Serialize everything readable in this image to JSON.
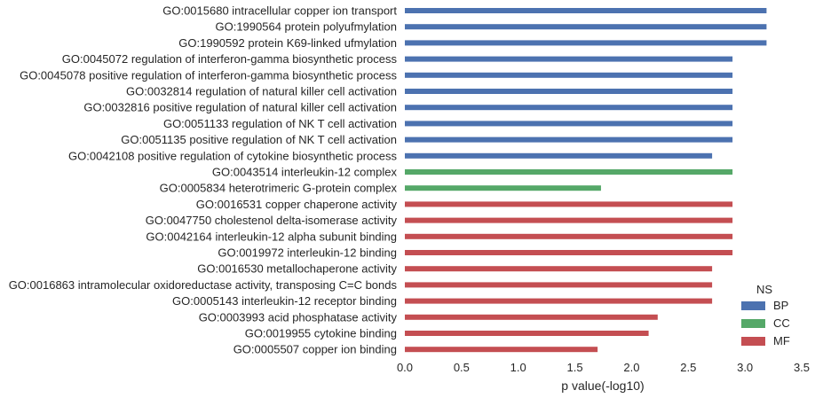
{
  "chart_data": {
    "type": "bar",
    "orientation": "horizontal",
    "title": "",
    "xlabel": "p value(-log10)",
    "ylabel": "",
    "xlim": [
      0,
      3.5
    ],
    "xticks": [
      "0.0",
      "0.5",
      "1.0",
      "1.5",
      "2.0",
      "2.5",
      "3.0",
      "3.5"
    ],
    "grid": false,
    "legend": {
      "title": "NS",
      "placement": "bottom-right",
      "entries": [
        {
          "key": "BP",
          "label": "BP",
          "color": "#4c72b0"
        },
        {
          "key": "CC",
          "label": "CC",
          "color": "#55a868"
        },
        {
          "key": "MF",
          "label": "MF",
          "color": "#c44e52"
        }
      ]
    },
    "bars": [
      {
        "label": "GO:0015680 intracellular copper ion transport",
        "value": 3.19,
        "ns": "BP"
      },
      {
        "label": "GO:1990564 protein polyufmylation",
        "value": 3.19,
        "ns": "BP"
      },
      {
        "label": "GO:1990592 protein K69-linked ufmylation",
        "value": 3.19,
        "ns": "BP"
      },
      {
        "label": "GO:0045072 regulation of interferon-gamma biosynthetic process",
        "value": 2.89,
        "ns": "BP"
      },
      {
        "label": "GO:0045078 positive regulation of interferon-gamma biosynthetic process",
        "value": 2.89,
        "ns": "BP"
      },
      {
        "label": "GO:0032814 regulation of natural killer cell activation",
        "value": 2.89,
        "ns": "BP"
      },
      {
        "label": "GO:0032816 positive regulation of natural killer cell activation",
        "value": 2.89,
        "ns": "BP"
      },
      {
        "label": "GO:0051133 regulation of NK T cell activation",
        "value": 2.89,
        "ns": "BP"
      },
      {
        "label": "GO:0051135 positive regulation of NK T cell activation",
        "value": 2.89,
        "ns": "BP"
      },
      {
        "label": "GO:0042108 positive regulation of cytokine biosynthetic process",
        "value": 2.71,
        "ns": "BP"
      },
      {
        "label": "GO:0043514 interleukin-12 complex",
        "value": 2.89,
        "ns": "CC"
      },
      {
        "label": "GO:0005834 heterotrimeric G-protein complex",
        "value": 1.73,
        "ns": "CC"
      },
      {
        "label": "GO:0016531 copper chaperone activity",
        "value": 2.89,
        "ns": "MF"
      },
      {
        "label": "GO:0047750 cholestenol delta-isomerase activity",
        "value": 2.89,
        "ns": "MF"
      },
      {
        "label": "GO:0042164 interleukin-12 alpha subunit binding",
        "value": 2.89,
        "ns": "MF"
      },
      {
        "label": "GO:0019972 interleukin-12 binding",
        "value": 2.89,
        "ns": "MF"
      },
      {
        "label": "GO:0016530 metallochaperone activity",
        "value": 2.71,
        "ns": "MF"
      },
      {
        "label": "GO:0016863 intramolecular oxidoreductase activity, transposing C=C bonds",
        "value": 2.71,
        "ns": "MF"
      },
      {
        "label": "GO:0005143 interleukin-12 receptor binding",
        "value": 2.71,
        "ns": "MF"
      },
      {
        "label": "GO:0003993 acid phosphatase activity",
        "value": 2.23,
        "ns": "MF"
      },
      {
        "label": "GO:0019955 cytokine binding",
        "value": 2.15,
        "ns": "MF"
      },
      {
        "label": "GO:0005507 copper ion binding",
        "value": 1.7,
        "ns": "MF"
      }
    ]
  }
}
